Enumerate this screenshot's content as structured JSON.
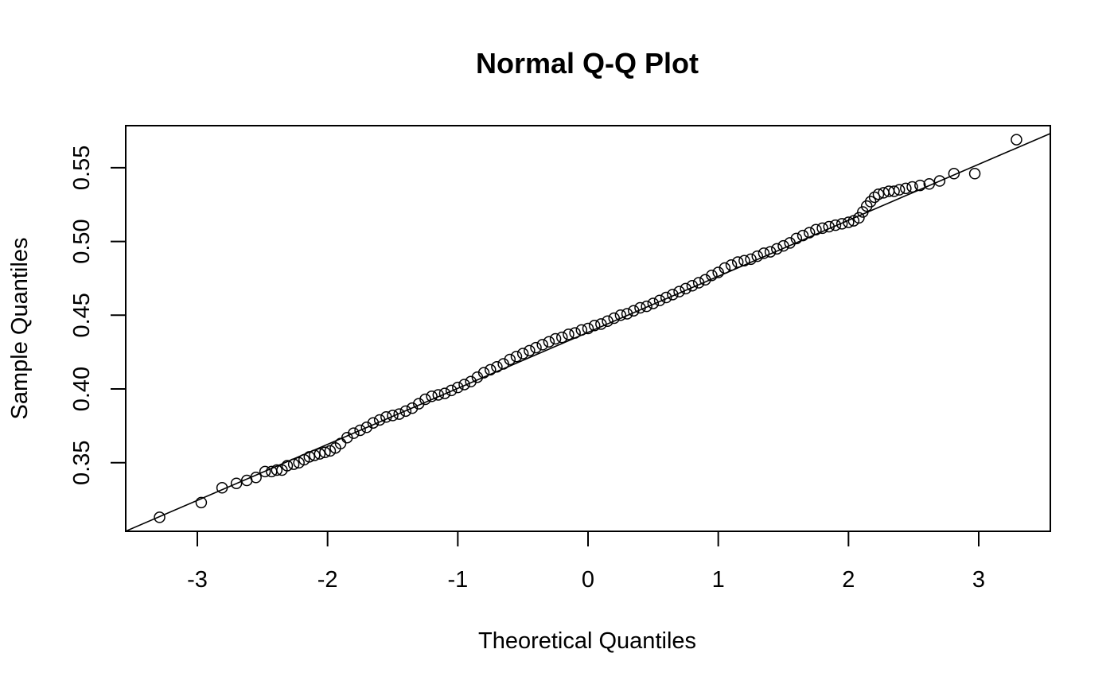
{
  "chart_data": {
    "type": "scatter",
    "title": "Normal Q-Q Plot",
    "xlabel": "Theoretical Quantiles",
    "ylabel": "Sample Quantiles",
    "xlim": [
      -3.55,
      3.55
    ],
    "ylim": [
      0.3035,
      0.5785
    ],
    "x_ticks": [
      -3,
      -2,
      -1,
      0,
      1,
      2,
      3
    ],
    "x_tick_labels": [
      "-3",
      "-2",
      "-1",
      "0",
      "1",
      "2",
      "3"
    ],
    "y_ticks": [
      0.35,
      0.4,
      0.45,
      0.5,
      0.55
    ],
    "y_tick_labels": [
      "0.35",
      "0.40",
      "0.45",
      "0.50",
      "0.55"
    ],
    "grid": false,
    "marker": "open-circle",
    "reference_line": {
      "x": [
        -3.55,
        3.55
      ],
      "y": [
        0.3036,
        0.5732
      ]
    },
    "points": {
      "x": [
        -3.29,
        -2.97,
        -2.81,
        -2.7,
        -2.62,
        -2.55,
        -2.48,
        -2.43,
        -2.39,
        -2.35,
        -2.31,
        -2.26,
        -2.22,
        -2.18,
        -2.14,
        -2.1,
        -2.06,
        -2.02,
        -1.98,
        -1.94,
        -1.9,
        -1.85,
        -1.8,
        -1.75,
        -1.7,
        -1.65,
        -1.6,
        -1.55,
        -1.5,
        -1.45,
        -1.4,
        -1.35,
        -1.3,
        -1.25,
        -1.2,
        -1.15,
        -1.1,
        -1.05,
        -1.0,
        -0.95,
        -0.9,
        -0.85,
        -0.8,
        -0.75,
        -0.7,
        -0.65,
        -0.6,
        -0.55,
        -0.5,
        -0.45,
        -0.4,
        -0.35,
        -0.3,
        -0.25,
        -0.2,
        -0.15,
        -0.1,
        -0.05,
        0.0,
        0.05,
        0.1,
        0.15,
        0.2,
        0.25,
        0.3,
        0.35,
        0.4,
        0.45,
        0.5,
        0.55,
        0.6,
        0.65,
        0.7,
        0.75,
        0.8,
        0.85,
        0.9,
        0.95,
        1.0,
        1.05,
        1.1,
        1.15,
        1.2,
        1.25,
        1.3,
        1.35,
        1.4,
        1.45,
        1.5,
        1.55,
        1.6,
        1.65,
        1.7,
        1.75,
        1.8,
        1.85,
        1.9,
        1.95,
        2.0,
        2.04,
        2.08,
        2.11,
        2.14,
        2.17,
        2.2,
        2.23,
        2.27,
        2.31,
        2.35,
        2.39,
        2.44,
        2.49,
        2.55,
        2.62,
        2.7,
        2.81,
        2.97,
        3.29
      ],
      "y": [
        0.313,
        0.323,
        0.333,
        0.336,
        0.338,
        0.34,
        0.344,
        0.344,
        0.345,
        0.345,
        0.348,
        0.349,
        0.35,
        0.352,
        0.354,
        0.355,
        0.356,
        0.357,
        0.358,
        0.36,
        0.363,
        0.367,
        0.37,
        0.372,
        0.374,
        0.377,
        0.379,
        0.381,
        0.382,
        0.383,
        0.385,
        0.387,
        0.39,
        0.393,
        0.395,
        0.396,
        0.397,
        0.399,
        0.401,
        0.403,
        0.405,
        0.408,
        0.411,
        0.413,
        0.415,
        0.417,
        0.42,
        0.422,
        0.424,
        0.426,
        0.428,
        0.43,
        0.432,
        0.434,
        0.435,
        0.437,
        0.438,
        0.44,
        0.441,
        0.443,
        0.444,
        0.446,
        0.448,
        0.45,
        0.451,
        0.453,
        0.455,
        0.456,
        0.458,
        0.46,
        0.462,
        0.464,
        0.466,
        0.468,
        0.47,
        0.472,
        0.474,
        0.477,
        0.479,
        0.482,
        0.484,
        0.486,
        0.487,
        0.488,
        0.49,
        0.492,
        0.493,
        0.495,
        0.497,
        0.499,
        0.502,
        0.504,
        0.506,
        0.508,
        0.509,
        0.51,
        0.511,
        0.512,
        0.513,
        0.514,
        0.516,
        0.52,
        0.524,
        0.527,
        0.53,
        0.532,
        0.533,
        0.534,
        0.534,
        0.535,
        0.536,
        0.537,
        0.538,
        0.539,
        0.541,
        0.546,
        0.546,
        0.569
      ]
    }
  }
}
